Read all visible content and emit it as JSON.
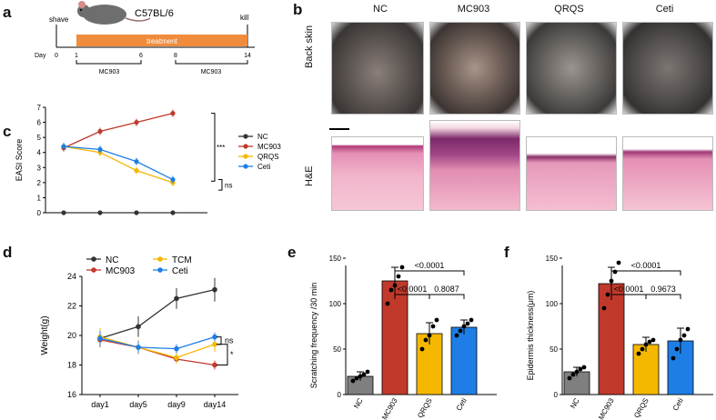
{
  "panels": {
    "a": "a",
    "b": "b",
    "c": "c",
    "d": "d",
    "e": "e",
    "f": "f"
  },
  "timeline": {
    "shave": "shave",
    "strain": "C57BL/6",
    "kill": "kill",
    "treatment": "treatment",
    "day_label": "Day",
    "ticks": [
      "0",
      "1",
      "6",
      "8",
      "14"
    ],
    "bracket1": "MC903",
    "bracket2": "MC903"
  },
  "photos": {
    "columns": [
      "NC",
      "MC903",
      "QRQS",
      "Ceti"
    ],
    "row1": "Back skin",
    "row2": "H&E"
  },
  "colors": {
    "NC": "#333333",
    "MC903": "#c0392b",
    "QRQS": "#f5b700",
    "Ceti": "#1e7ee6",
    "treatment": "#f08c3c",
    "NC_bar": "#7f7f7f"
  },
  "chart_data": [
    {
      "id": "c",
      "type": "line",
      "ylabel": "EASI Score",
      "ylim": [
        0,
        7
      ],
      "yticks": [
        "0",
        "1",
        "2",
        "3",
        "4",
        "5",
        "6",
        "7"
      ],
      "x": [
        1,
        2,
        3,
        4
      ],
      "series": [
        {
          "name": "NC",
          "values": [
            0,
            0,
            0,
            0
          ]
        },
        {
          "name": "MC903",
          "values": [
            4.3,
            5.4,
            6.0,
            6.6
          ]
        },
        {
          "name": "QRQS",
          "values": [
            4.4,
            4.0,
            2.8,
            2.0
          ]
        },
        {
          "name": "Ceti",
          "values": [
            4.4,
            4.2,
            3.4,
            2.2
          ]
        }
      ],
      "legend": [
        "NC",
        "MC903",
        "QRQS",
        "Ceti"
      ],
      "annotations": [
        "***",
        "ns"
      ]
    },
    {
      "id": "d",
      "type": "line",
      "ylabel": "Weight(g)",
      "ylim": [
        16,
        24
      ],
      "yticks": [
        "16",
        "18",
        "20",
        "22",
        "24"
      ],
      "categories": [
        "day1",
        "day5",
        "day9",
        "day14"
      ],
      "series": [
        {
          "name": "NC",
          "values": [
            19.8,
            20.6,
            22.5,
            23.1
          ]
        },
        {
          "name": "MC903",
          "values": [
            19.7,
            19.2,
            18.4,
            18.0
          ]
        },
        {
          "name": "TCM",
          "values": [
            19.9,
            19.2,
            18.5,
            19.4
          ]
        },
        {
          "name": "Ceti",
          "values": [
            19.8,
            19.2,
            19.1,
            19.9
          ]
        }
      ],
      "legend": [
        "NC",
        "TCM",
        "MC903",
        "Ceti"
      ],
      "annotations": [
        "ns",
        "*"
      ]
    },
    {
      "id": "e",
      "type": "bar",
      "ylabel": "Scratching frequency /30 min",
      "ylim": [
        0,
        150
      ],
      "yticks": [
        "0",
        "50",
        "100",
        "150"
      ],
      "categories": [
        "NC",
        "MC903",
        "QRQS",
        "Ceti"
      ],
      "values": [
        20,
        125,
        67,
        74
      ],
      "comparisons": [
        "<0.0001",
        "<0.0001",
        "0.8087"
      ]
    },
    {
      "id": "f",
      "type": "bar",
      "ylabel": "Epidermis thickness(μm)",
      "ylim": [
        0,
        150
      ],
      "yticks": [
        "0",
        "50",
        "100",
        "150"
      ],
      "categories": [
        "NC",
        "MC903",
        "QRQS",
        "Ceti"
      ],
      "values": [
        25,
        122,
        55,
        59
      ],
      "comparisons": [
        "<0.0001",
        "<0.0001",
        "0.9673"
      ]
    }
  ]
}
